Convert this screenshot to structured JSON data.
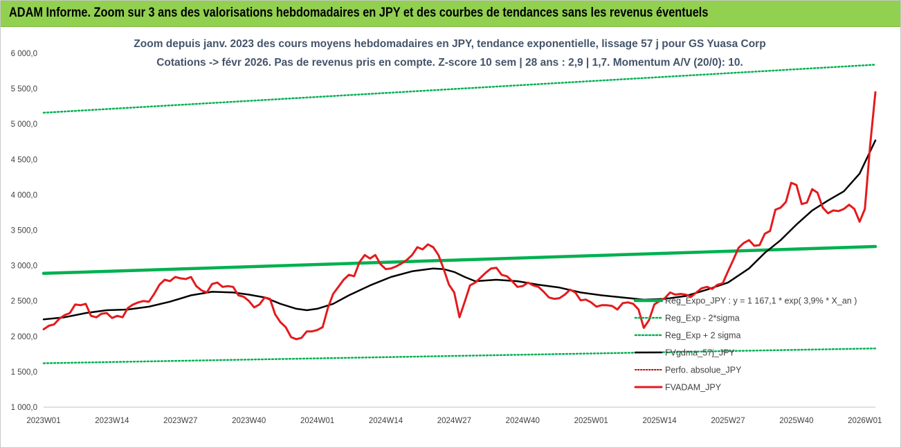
{
  "header": {
    "title": "ADAM Informe. Zoom sur 3 ans des valorisations hebdomadaires en JPY et des courbes de tendances sans les revenus éventuels"
  },
  "colors": {
    "banner": "#92d050",
    "trend": "#00b050",
    "sigma": "#00b050",
    "smooth": "#000000",
    "price": "#e31a1c",
    "perf": "#c00000"
  },
  "chart_data": {
    "type": "line",
    "title": "Zoom depuis janv. 2023 des cours moyens hebdomadaires en JPY, tendance exponentielle, lissage 57 j pour GS Yuasa Corp",
    "subtitle": "Cotations -> févr 2026. Pas de revenus pris en compte. Z-score 10 sem | 28 ans : 2,9 | 1,7. Momentum A/V (20/0): 10.",
    "xlabel": "",
    "ylabel": "",
    "ylim": [
      1000,
      6000
    ],
    "y_ticks": [
      "6 000,0",
      "5 500,0",
      "5 000,0",
      "4 500,0",
      "4 000,0",
      "3 500,0",
      "3 000,0",
      "2 500,0",
      "2 000,0",
      "1 500,0",
      "1 000,0"
    ],
    "x_ticks": [
      "2023W01",
      "2023W14",
      "2023W27",
      "2023W40",
      "2024W01",
      "2024W14",
      "2024W27",
      "2024W40",
      "2025W01",
      "2025W14",
      "2025W27",
      "2025W40",
      "2026W01"
    ],
    "x_week_range": [
      0,
      158
    ],
    "grid": false,
    "legend_position": "right-center",
    "series": [
      {
        "name": "Reg_Expo_JPY : y = 1 167,1 * exp( 3,9% * X_an )",
        "style": "trend",
        "points": [
          [
            0,
            2890
          ],
          [
            158,
            3270
          ]
        ]
      },
      {
        "name": "Reg_Exp - 2*sigma",
        "style": "sigma",
        "points": [
          [
            0,
            1620
          ],
          [
            158,
            1830
          ]
        ]
      },
      {
        "name": "Reg_Exp + 2 sigma",
        "style": "sigma",
        "points": [
          [
            0,
            5160
          ],
          [
            158,
            5840
          ]
        ]
      },
      {
        "name": "FVgdma_57j_JPY",
        "style": "smooth",
        "points": [
          [
            0,
            2240
          ],
          [
            4,
            2270
          ],
          [
            8,
            2330
          ],
          [
            12,
            2370
          ],
          [
            16,
            2380
          ],
          [
            20,
            2420
          ],
          [
            24,
            2490
          ],
          [
            28,
            2580
          ],
          [
            32,
            2630
          ],
          [
            36,
            2620
          ],
          [
            39,
            2590
          ],
          [
            42,
            2550
          ],
          [
            45,
            2460
          ],
          [
            48,
            2390
          ],
          [
            50,
            2370
          ],
          [
            52,
            2390
          ],
          [
            55,
            2460
          ],
          [
            58,
            2580
          ],
          [
            62,
            2720
          ],
          [
            66,
            2840
          ],
          [
            70,
            2920
          ],
          [
            74,
            2960
          ],
          [
            76,
            2950
          ],
          [
            78,
            2910
          ],
          [
            80,
            2840
          ],
          [
            82,
            2780
          ],
          [
            86,
            2800
          ],
          [
            90,
            2780
          ],
          [
            94,
            2730
          ],
          [
            98,
            2690
          ],
          [
            102,
            2620
          ],
          [
            106,
            2580
          ],
          [
            110,
            2550
          ],
          [
            114,
            2520
          ],
          [
            118,
            2530
          ],
          [
            122,
            2570
          ],
          [
            126,
            2660
          ],
          [
            130,
            2760
          ],
          [
            134,
            2960
          ],
          [
            137,
            3180
          ],
          [
            140,
            3360
          ],
          [
            143,
            3580
          ],
          [
            146,
            3780
          ],
          [
            149,
            3920
          ],
          [
            152,
            4050
          ],
          [
            155,
            4300
          ],
          [
            158,
            4770
          ]
        ]
      },
      {
        "name": "Perfo. absolue_JPY",
        "style": "perf",
        "points": []
      },
      {
        "name": "FVADAM_JPY",
        "style": "price",
        "points": [
          [
            0,
            2100
          ],
          [
            1,
            2150
          ],
          [
            2,
            2170
          ],
          [
            3,
            2250
          ],
          [
            4,
            2300
          ],
          [
            5,
            2330
          ],
          [
            6,
            2450
          ],
          [
            7,
            2440
          ],
          [
            8,
            2460
          ],
          [
            9,
            2290
          ],
          [
            10,
            2270
          ],
          [
            11,
            2320
          ],
          [
            12,
            2330
          ],
          [
            13,
            2260
          ],
          [
            14,
            2290
          ],
          [
            15,
            2270
          ],
          [
            16,
            2400
          ],
          [
            17,
            2450
          ],
          [
            18,
            2480
          ],
          [
            19,
            2500
          ],
          [
            20,
            2490
          ],
          [
            21,
            2600
          ],
          [
            22,
            2730
          ],
          [
            23,
            2800
          ],
          [
            24,
            2780
          ],
          [
            25,
            2840
          ],
          [
            26,
            2820
          ],
          [
            27,
            2810
          ],
          [
            28,
            2840
          ],
          [
            29,
            2710
          ],
          [
            30,
            2650
          ],
          [
            31,
            2620
          ],
          [
            32,
            2740
          ],
          [
            33,
            2760
          ],
          [
            34,
            2700
          ],
          [
            35,
            2710
          ],
          [
            36,
            2700
          ],
          [
            37,
            2580
          ],
          [
            38,
            2560
          ],
          [
            39,
            2500
          ],
          [
            40,
            2410
          ],
          [
            41,
            2450
          ],
          [
            42,
            2550
          ],
          [
            43,
            2530
          ],
          [
            44,
            2310
          ],
          [
            45,
            2200
          ],
          [
            46,
            2130
          ],
          [
            47,
            1990
          ],
          [
            48,
            1960
          ],
          [
            49,
            1980
          ],
          [
            50,
            2070
          ],
          [
            51,
            2070
          ],
          [
            52,
            2090
          ],
          [
            53,
            2130
          ],
          [
            54,
            2400
          ],
          [
            55,
            2600
          ],
          [
            56,
            2700
          ],
          [
            57,
            2800
          ],
          [
            58,
            2870
          ],
          [
            59,
            2850
          ],
          [
            60,
            3050
          ],
          [
            61,
            3150
          ],
          [
            62,
            3100
          ],
          [
            63,
            3150
          ],
          [
            64,
            3020
          ],
          [
            65,
            2950
          ],
          [
            66,
            2960
          ],
          [
            67,
            2990
          ],
          [
            68,
            3030
          ],
          [
            69,
            3080
          ],
          [
            70,
            3150
          ],
          [
            71,
            3260
          ],
          [
            72,
            3230
          ],
          [
            73,
            3300
          ],
          [
            74,
            3260
          ],
          [
            75,
            3150
          ],
          [
            76,
            2950
          ],
          [
            77,
            2730
          ],
          [
            78,
            2620
          ],
          [
            79,
            2270
          ],
          [
            80,
            2490
          ],
          [
            81,
            2720
          ],
          [
            82,
            2760
          ],
          [
            83,
            2830
          ],
          [
            84,
            2900
          ],
          [
            85,
            2960
          ],
          [
            86,
            2970
          ],
          [
            87,
            2870
          ],
          [
            88,
            2850
          ],
          [
            89,
            2780
          ],
          [
            90,
            2700
          ],
          [
            91,
            2710
          ],
          [
            92,
            2760
          ],
          [
            93,
            2720
          ],
          [
            94,
            2700
          ],
          [
            95,
            2630
          ],
          [
            96,
            2550
          ],
          [
            97,
            2530
          ],
          [
            98,
            2540
          ],
          [
            99,
            2590
          ],
          [
            100,
            2660
          ],
          [
            101,
            2620
          ],
          [
            102,
            2510
          ],
          [
            103,
            2520
          ],
          [
            104,
            2480
          ],
          [
            105,
            2420
          ],
          [
            106,
            2440
          ],
          [
            107,
            2440
          ],
          [
            108,
            2430
          ],
          [
            109,
            2380
          ],
          [
            110,
            2470
          ],
          [
            111,
            2480
          ],
          [
            112,
            2460
          ],
          [
            113,
            2380
          ],
          [
            114,
            2120
          ],
          [
            115,
            2230
          ],
          [
            116,
            2450
          ],
          [
            117,
            2500
          ],
          [
            118,
            2540
          ],
          [
            119,
            2620
          ],
          [
            120,
            2590
          ],
          [
            121,
            2600
          ],
          [
            122,
            2590
          ],
          [
            123,
            2560
          ],
          [
            124,
            2620
          ],
          [
            125,
            2680
          ],
          [
            126,
            2700
          ],
          [
            127,
            2670
          ],
          [
            128,
            2730
          ],
          [
            129,
            2750
          ],
          [
            130,
            2920
          ],
          [
            131,
            3080
          ],
          [
            132,
            3250
          ],
          [
            133,
            3320
          ],
          [
            134,
            3360
          ],
          [
            135,
            3280
          ],
          [
            136,
            3290
          ],
          [
            137,
            3450
          ],
          [
            138,
            3490
          ],
          [
            139,
            3790
          ],
          [
            140,
            3820
          ],
          [
            141,
            3900
          ],
          [
            142,
            4170
          ],
          [
            143,
            4140
          ],
          [
            144,
            3870
          ],
          [
            145,
            3890
          ],
          [
            146,
            4080
          ],
          [
            147,
            4030
          ],
          [
            148,
            3820
          ],
          [
            149,
            3740
          ],
          [
            150,
            3780
          ],
          [
            151,
            3770
          ],
          [
            152,
            3800
          ],
          [
            153,
            3860
          ],
          [
            154,
            3800
          ],
          [
            155,
            3620
          ],
          [
            156,
            3800
          ],
          [
            157,
            4700
          ],
          [
            158,
            5450
          ]
        ]
      }
    ]
  }
}
